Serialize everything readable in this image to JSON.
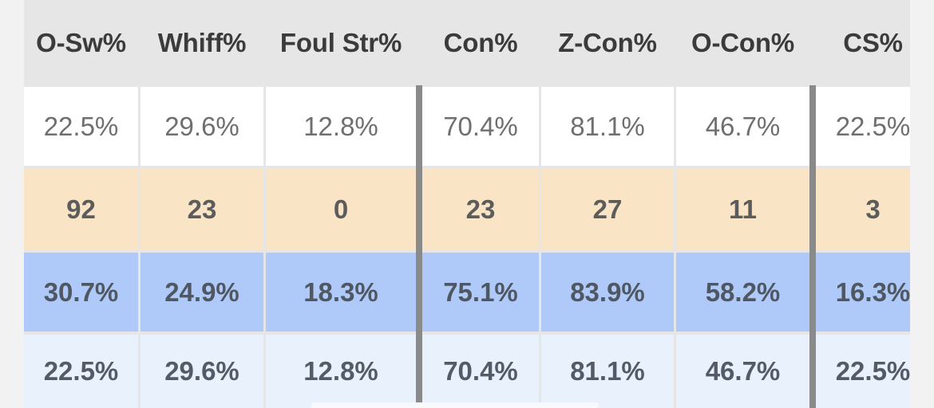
{
  "table": {
    "headers": [
      "O-Sw%",
      "Whiff%",
      "Foul Str%",
      "Con%",
      "Z-Con%",
      "O-Con%",
      "CS%"
    ],
    "rows": [
      [
        "22.5%",
        "29.6%",
        "12.8%",
        "70.4%",
        "81.1%",
        "46.7%",
        "22.5%"
      ],
      [
        "92",
        "23",
        "0",
        "23",
        "27",
        "11",
        "3"
      ],
      [
        "30.7%",
        "24.9%",
        "18.3%",
        "75.1%",
        "83.9%",
        "58.2%",
        "16.3%"
      ],
      [
        "22.5%",
        "29.6%",
        "12.8%",
        "70.4%",
        "81.1%",
        "46.7%",
        "22.5%"
      ]
    ]
  },
  "colors": {
    "header_bg": "#e6e6e6",
    "row_white": "#ffffff",
    "row_percentile": "#fae4c6",
    "row_blue": "#afcaf9",
    "row_lightblue": "#e9f1fd",
    "separator": "#8a8a8a"
  }
}
